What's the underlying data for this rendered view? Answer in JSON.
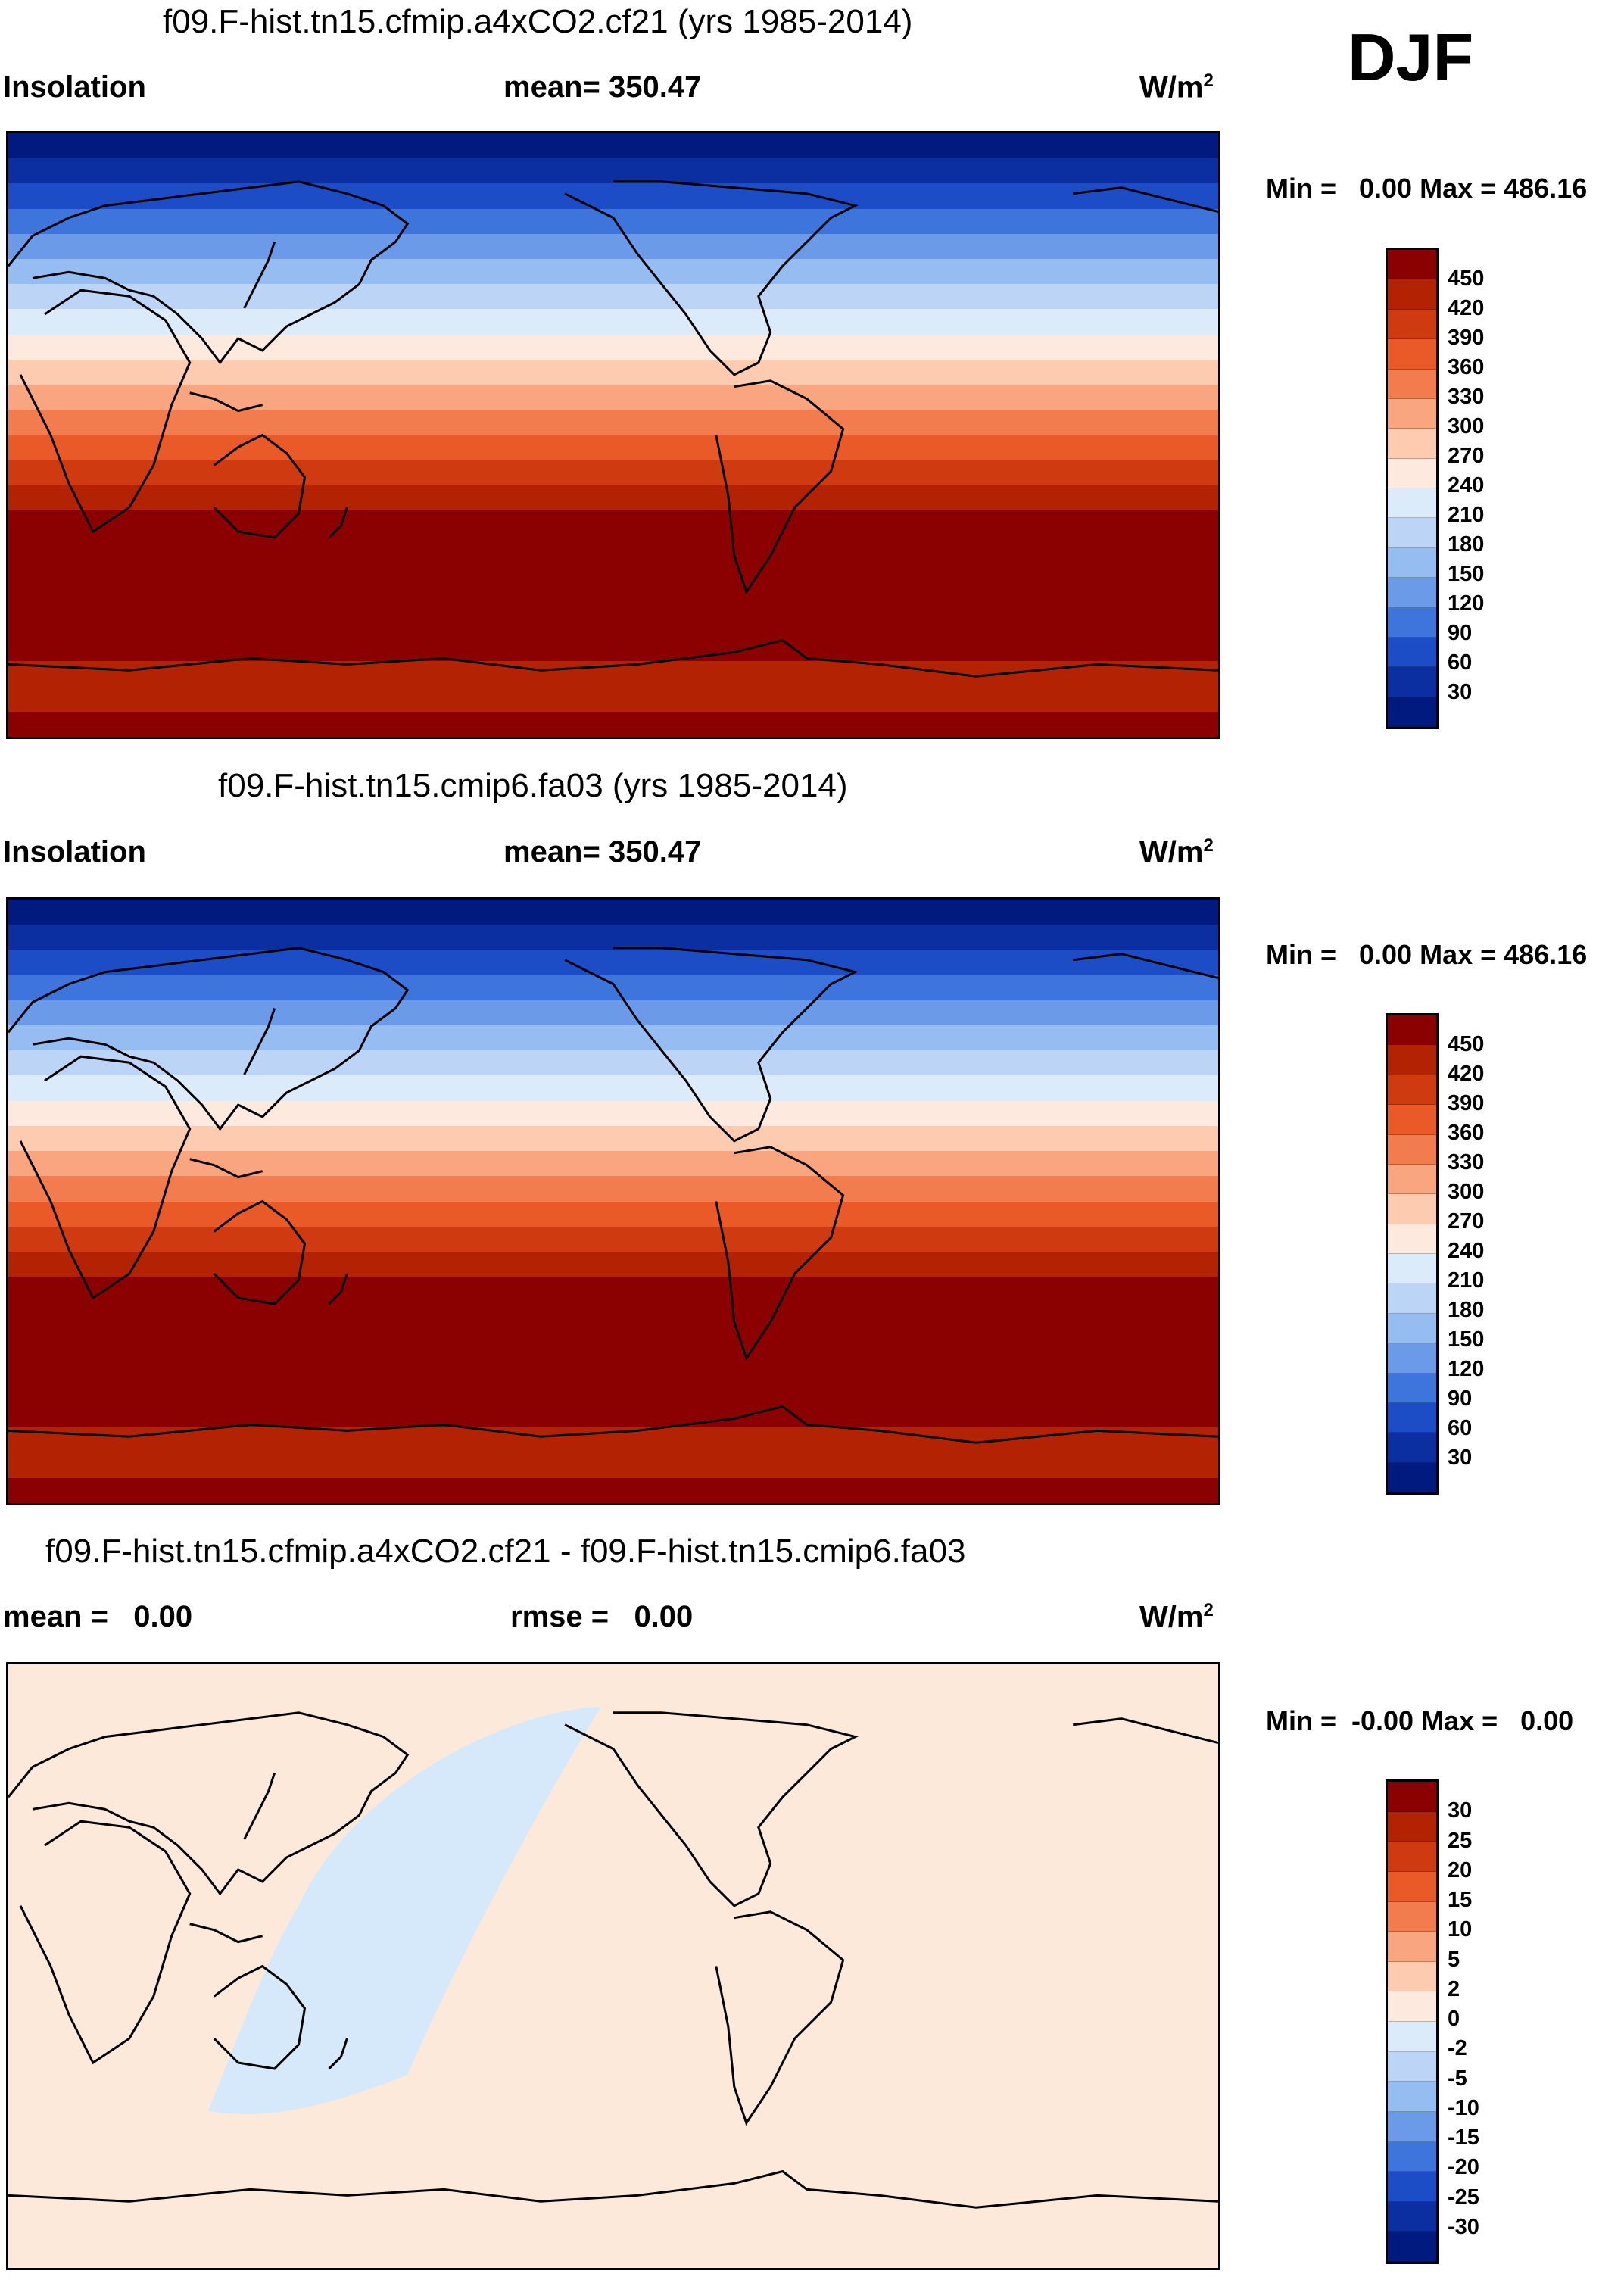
{
  "season": "DJF",
  "panels": [
    {
      "title": "f09.F-hist.tn15.cfmip.a4xCO2.cf21 (yrs 1985-2014)",
      "left_label": "Insolation",
      "center_label": "mean= 350.47",
      "units_base": "W/m",
      "units_exp": "2",
      "min_max": "Min =   0.00 Max = 486.16",
      "colorbar_labels": [
        "450",
        "420",
        "390",
        "360",
        "330",
        "300",
        "270",
        "240",
        "210",
        "180",
        "150",
        "120",
        "90",
        "60",
        "30"
      ]
    },
    {
      "title": "f09.F-hist.tn15.cmip6.fa03 (yrs 1985-2014)",
      "left_label": "Insolation",
      "center_label": "mean= 350.47",
      "units_base": "W/m",
      "units_exp": "2",
      "min_max": "Min =   0.00 Max = 486.16",
      "colorbar_labels": [
        "450",
        "420",
        "390",
        "360",
        "330",
        "300",
        "270",
        "240",
        "210",
        "180",
        "150",
        "120",
        "90",
        "60",
        "30"
      ]
    },
    {
      "title": "f09.F-hist.tn15.cfmip.a4xCO2.cf21 - f09.F-hist.tn15.cmip6.fa03",
      "left_label": "mean =   0.00",
      "center_label": "rmse =   0.00",
      "units_base": "W/m",
      "units_exp": "2",
      "min_max": "Min =  -0.00 Max =   0.00",
      "colorbar_labels": [
        "30",
        "25",
        "20",
        "15",
        "10",
        "5",
        "2",
        "0",
        "-2",
        "-5",
        "-10",
        "-15",
        "-20",
        "-25",
        "-30"
      ]
    }
  ],
  "colors": {
    "main_scale": [
      "#8b0000",
      "#b22203",
      "#cf3a10",
      "#ea5a28",
      "#f37c4e",
      "#f9a57f",
      "#fccbb0",
      "#fde9dd",
      "#dcebfa",
      "#bcd5f6",
      "#96bdf1",
      "#6b9be8",
      "#3e75dd",
      "#1d4dc6",
      "#0b2ea0",
      "#001a80"
    ],
    "diff_scale": [
      "#8b0000",
      "#b22203",
      "#cf3a10",
      "#ea5a28",
      "#f37c4e",
      "#f9a57f",
      "#fccbb0",
      "#fde9dd",
      "#dcebfa",
      "#bcd5f6",
      "#96bdf1",
      "#6b9be8",
      "#3e75dd",
      "#1d4dc6",
      "#0b2ea0",
      "#001a80"
    ],
    "diff_background": "#fde9da",
    "diff_patch": "#d6e9fb"
  },
  "chart_data": {
    "type": "heatmap",
    "variable": "Insolation",
    "units": "W/m2",
    "main_levels": [
      30,
      60,
      90,
      120,
      150,
      180,
      210,
      240,
      270,
      300,
      330,
      360,
      390,
      420,
      450
    ],
    "diff_levels": [
      -30,
      -25,
      -20,
      -15,
      -10,
      -5,
      -2,
      0,
      2,
      5,
      10,
      15,
      20,
      25,
      30
    ],
    "lat_band_values_north_to_south": [
      15,
      45,
      75,
      105,
      135,
      165,
      195,
      225,
      255,
      285,
      315,
      345,
      375,
      405,
      435,
      465,
      465,
      465,
      465,
      465,
      465,
      435,
      435,
      465
    ]
  }
}
